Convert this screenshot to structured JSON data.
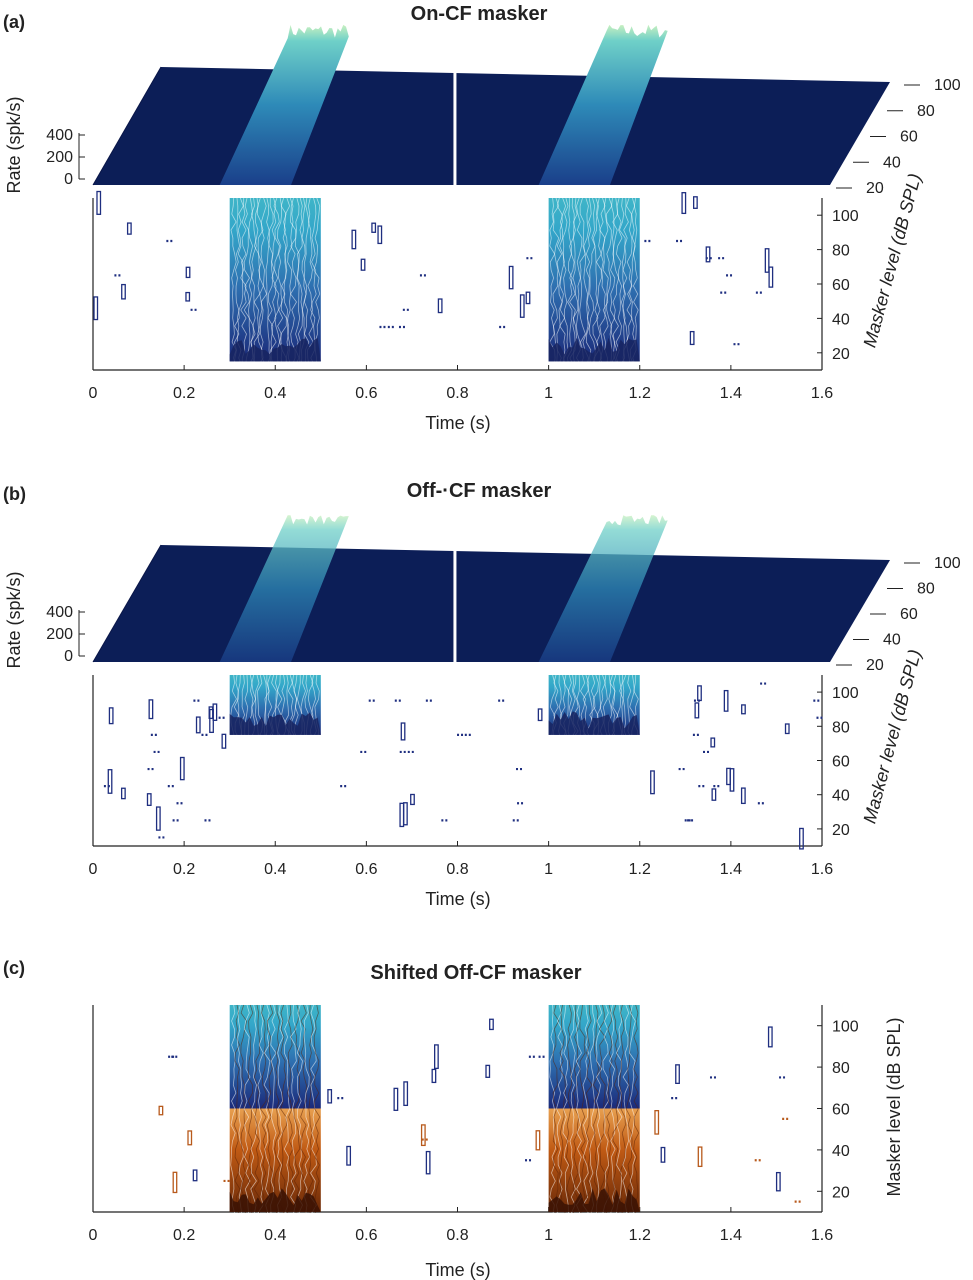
{
  "figure": {
    "panels": [
      {
        "id": "a",
        "panel_label": "(a)",
        "title": "On-CF masker",
        "has_surface": true,
        "rate_axis": {
          "label": "Rate (spk/s)",
          "ticks": [
            "0",
            "200",
            "400"
          ]
        },
        "level_axis": {
          "label": "Masker level (dB SPL)",
          "ticks": [
            "20",
            "40",
            "60",
            "80",
            "100"
          ],
          "italic": true
        },
        "surface_level_ticks": [
          "20",
          "40",
          "60",
          "80",
          "100"
        ],
        "time_axis": {
          "label": "Time (s)",
          "ticks": [
            "0",
            "0.2",
            "0.4",
            "0.6",
            "0.8",
            "1",
            "1.2",
            "1.4",
            "1.6"
          ]
        }
      },
      {
        "id": "b",
        "panel_label": "(b)",
        "title": "Off-·CF masker",
        "has_surface": true,
        "rate_axis": {
          "label": "Rate (spk/s)",
          "ticks": [
            "0",
            "200",
            "400"
          ]
        },
        "level_axis": {
          "label": "Masker level (dB SPL)",
          "ticks": [
            "20",
            "40",
            "60",
            "80",
            "100"
          ],
          "italic": true
        },
        "surface_level_ticks": [
          "20",
          "40",
          "60",
          "80",
          "100"
        ],
        "time_axis": {
          "label": "Time (s)",
          "ticks": [
            "0",
            "0.2",
            "0.4",
            "0.6",
            "0.8",
            "1",
            "1.2",
            "1.4",
            "1.6"
          ]
        }
      },
      {
        "id": "c",
        "panel_label": "(c)",
        "title": "Shifted Off-CF masker",
        "has_surface": false,
        "level_axis": {
          "label": "Masker level (dB SPL)",
          "ticks": [
            "20",
            "40",
            "60",
            "80",
            "100"
          ],
          "italic": false
        },
        "time_axis": {
          "label": "Time (s)",
          "ticks": [
            "0",
            "0.2",
            "0.4",
            "0.6",
            "0.8",
            "1",
            "1.2",
            "1.4",
            "1.6"
          ]
        }
      }
    ]
  },
  "colors": {
    "background_navy": "#0c1e57",
    "contour_low": "#1b2a7a",
    "contour_mid": "#2e6fb0",
    "contour_high": "#33a6c9",
    "contour_peak": "#9fe0d0",
    "shifted_low": "#6b2a08",
    "shifted_mid": "#c05a14",
    "shifted_high": "#e8a050"
  },
  "chart_data": [
    {
      "panel": "a",
      "type": "heatmap",
      "title": "On-CF masker",
      "x": {
        "label": "Time (s)",
        "range": [
          0,
          1.6
        ]
      },
      "y": {
        "label": "Masker level (dB SPL)",
        "range": [
          10,
          110
        ]
      },
      "z": {
        "label": "Rate (spk/s)",
        "range": [
          0,
          400
        ]
      },
      "stimulus_windows_s": [
        [
          0.3,
          0.5
        ],
        [
          1.0,
          1.2
        ]
      ],
      "response_threshold_db": 15,
      "surface_peak_rate": 420
    },
    {
      "panel": "b",
      "type": "heatmap",
      "title": "Off-·CF masker",
      "x": {
        "label": "Time (s)",
        "range": [
          0,
          1.6
        ]
      },
      "y": {
        "label": "Masker level (dB SPL)",
        "range": [
          10,
          110
        ]
      },
      "z": {
        "label": "Rate (spk/s)",
        "range": [
          0,
          400
        ]
      },
      "stimulus_windows_s": [
        [
          0.3,
          0.5
        ],
        [
          1.0,
          1.2
        ]
      ],
      "response_threshold_db": 75,
      "surface_peak_rate": 300
    },
    {
      "panel": "c",
      "type": "heatmap",
      "title": "Shifted Off-CF masker",
      "x": {
        "label": "Time (s)",
        "range": [
          0,
          1.6
        ]
      },
      "y": {
        "label": "Masker level (dB SPL)",
        "range": [
          10,
          110
        ]
      },
      "stimulus_windows_s": [
        [
          0.3,
          0.5
        ],
        [
          1.0,
          1.2
        ]
      ],
      "shift_boundary_db": 60,
      "upper_region": "on-CF response (blue)",
      "lower_region": "shifted off-CF response (orange)"
    }
  ]
}
